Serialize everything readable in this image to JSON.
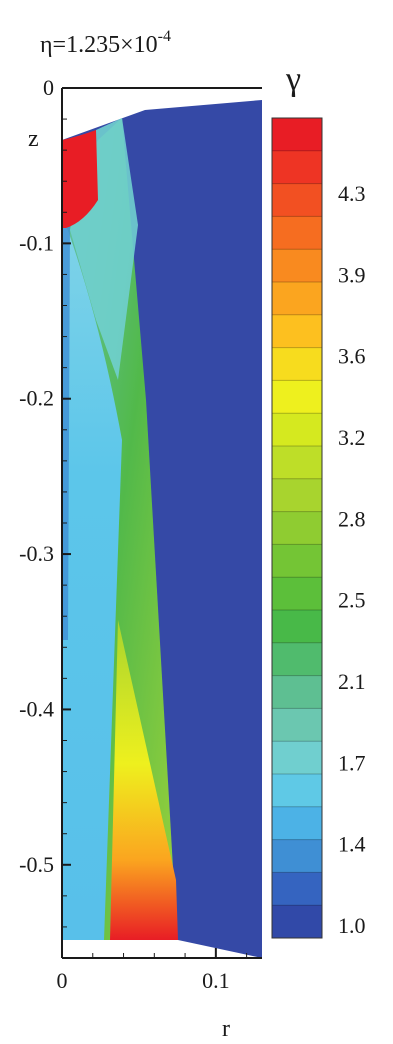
{
  "chart_data": {
    "type": "heatmap",
    "title": "η=1.235×10",
    "title_exponent": "-4",
    "xlabel": "r",
    "ylabel": "z",
    "xlim": [
      0,
      0.13
    ],
    "ylim": [
      -0.56,
      0.0
    ],
    "x_ticks": [
      "0",
      "0.1"
    ],
    "x_tick_values": [
      0,
      0.1
    ],
    "y_ticks": [
      "0",
      "-0.1",
      "-0.2",
      "-0.3",
      "-0.4",
      "-0.5"
    ],
    "y_tick_values": [
      0,
      -0.1,
      -0.2,
      -0.3,
      -0.4,
      -0.5
    ],
    "colorbar": {
      "title": "γ",
      "labels": [
        "4.3",
        "3.9",
        "3.6",
        "3.2",
        "2.8",
        "2.5",
        "2.1",
        "1.7",
        "1.4",
        "1.0"
      ],
      "levels_top_to_bottom": [
        4.6,
        4.4,
        4.3,
        4.1,
        3.9,
        3.8,
        3.6,
        3.4,
        3.2,
        3.1,
        2.9,
        2.8,
        2.6,
        2.5,
        2.3,
        2.1,
        2.0,
        1.8,
        1.7,
        1.5,
        1.4,
        1.2,
        1.1,
        1.0
      ],
      "colors_top_to_bottom": [
        "#e81d25",
        "#ee3424",
        "#f25022",
        "#f66d20",
        "#f98a1f",
        "#fba51f",
        "#fdc01f",
        "#f7dc1e",
        "#eef01e",
        "#d5e91f",
        "#bede28",
        "#a8d42e",
        "#8fcc31",
        "#74c535",
        "#5cbf3a",
        "#48b948",
        "#50bb6d",
        "#5ebf92",
        "#6bc7b0",
        "#70cfcf",
        "#5fc9e6",
        "#4cb2e6",
        "#3f8fd4",
        "#3564c0",
        "#3149a8"
      ]
    },
    "background_level": 1.0
  }
}
